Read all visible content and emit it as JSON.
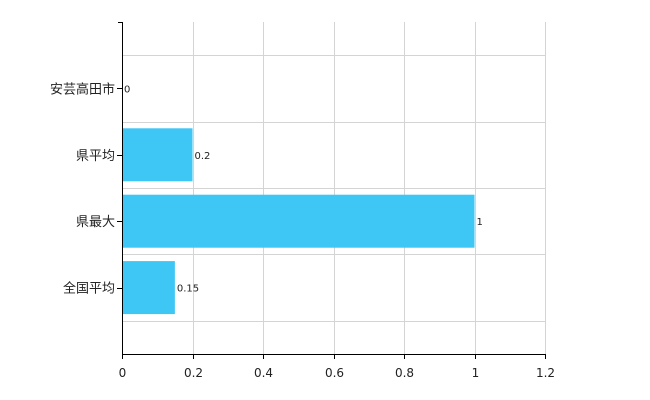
{
  "chart_data": {
    "type": "bar",
    "orientation": "horizontal",
    "categories": [
      "安芸高田市",
      "県平均",
      "県最大",
      "全国平均"
    ],
    "values": [
      0,
      0.2,
      1,
      0.15
    ],
    "data_labels": [
      "0",
      "0.2",
      "1",
      "0.15"
    ],
    "xlim": [
      0,
      1.2
    ],
    "x_ticks": [
      0,
      0.2,
      0.4,
      0.6,
      0.8,
      1,
      1.2
    ],
    "x_tick_labels": [
      "0",
      "0.2",
      "0.4",
      "0.6",
      "0.8",
      "1",
      "1.2"
    ],
    "grid": true,
    "bar_color": "#3ec6f5"
  }
}
